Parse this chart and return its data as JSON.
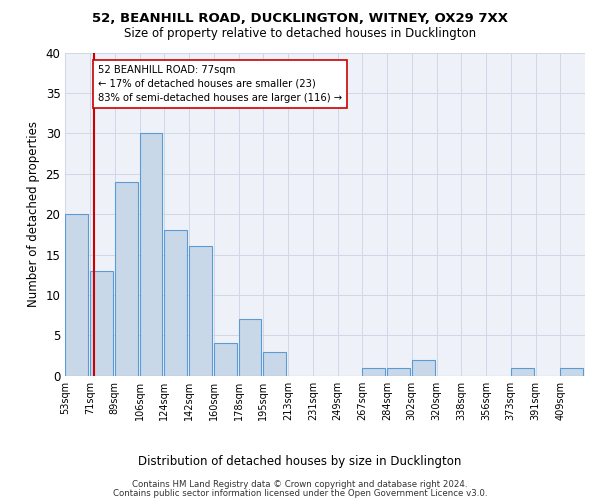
{
  "title1": "52, BEANHILL ROAD, DUCKLINGTON, WITNEY, OX29 7XX",
  "title2": "Size of property relative to detached houses in Ducklington",
  "xlabel": "Distribution of detached houses by size in Ducklington",
  "ylabel": "Number of detached properties",
  "bins": [
    "53sqm",
    "71sqm",
    "89sqm",
    "106sqm",
    "124sqm",
    "142sqm",
    "160sqm",
    "178sqm",
    "195sqm",
    "213sqm",
    "231sqm",
    "249sqm",
    "267sqm",
    "284sqm",
    "302sqm",
    "320sqm",
    "338sqm",
    "356sqm",
    "373sqm",
    "391sqm",
    "409sqm"
  ],
  "values": [
    20,
    13,
    24,
    30,
    18,
    16,
    4,
    7,
    3,
    0,
    0,
    0,
    1,
    1,
    2,
    0,
    0,
    0,
    1,
    0,
    1
  ],
  "bar_color": "#c8d8e8",
  "bar_edge_color": "#5b9bd5",
  "grid_color": "#d0d8e8",
  "background_color": "#eef2f8",
  "vline_bin": 1.17,
  "vline_color": "#cc0000",
  "annotation_text": "52 BEANHILL ROAD: 77sqm\n← 17% of detached houses are smaller (23)\n83% of semi-detached houses are larger (116) →",
  "annotation_box_color": "white",
  "annotation_box_edge": "#cc0000",
  "footnote1": "Contains HM Land Registry data © Crown copyright and database right 2024.",
  "footnote2": "Contains public sector information licensed under the Open Government Licence v3.0.",
  "ylim": [
    0,
    40
  ],
  "yticks": [
    0,
    5,
    10,
    15,
    20,
    25,
    30,
    35,
    40
  ]
}
